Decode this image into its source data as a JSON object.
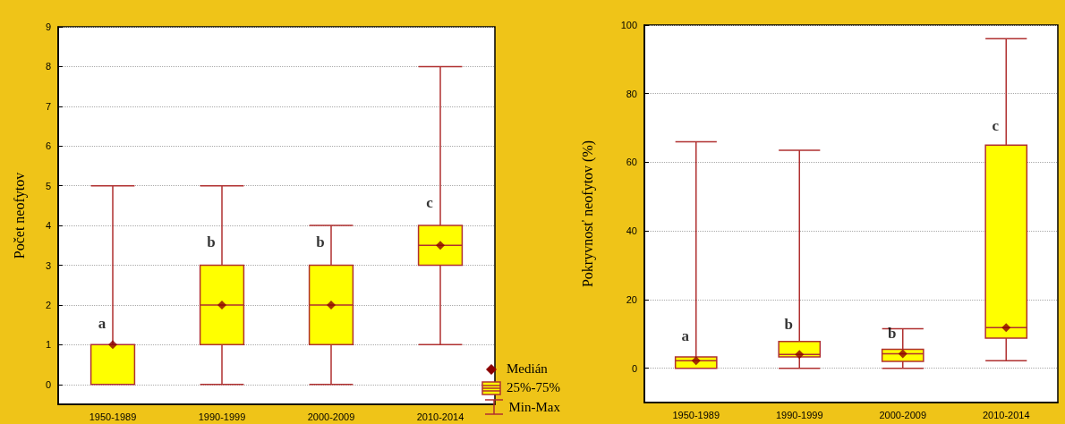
{
  "chart_data": [
    {
      "type": "box",
      "ylabel": "Počet neofytov",
      "categories": [
        "1950-1989",
        "1990-1999",
        "2000-2009",
        "2010-2014"
      ],
      "ylim": [
        -0.5,
        9
      ],
      "yticks": [
        0,
        1,
        2,
        3,
        4,
        5,
        6,
        7,
        8,
        9
      ],
      "grid": "y",
      "legend": "bottom right",
      "marker": "diamond",
      "series": [
        {
          "name": "25%-75%",
          "color": "#ffff00",
          "boxes": [
            {
              "low": 0,
              "q1": 0,
              "median": 1,
              "q3": 1,
              "high": 5
            },
            {
              "low": 0,
              "q1": 1,
              "median": 2,
              "q3": 3,
              "high": 5
            },
            {
              "low": 0,
              "q1": 1,
              "median": 2,
              "q3": 3,
              "high": 4
            },
            {
              "low": 1,
              "q1": 3,
              "median": 3.5,
              "q3": 4,
              "high": 8
            }
          ]
        },
        {
          "name": "Medián",
          "type": "scatter",
          "color": "#8b0000",
          "x": [
            "1950-1989",
            "1990-1999",
            "2000-2009",
            "2010-2014"
          ],
          "values": [
            1,
            2,
            2,
            3.5
          ]
        }
      ],
      "annotations": [
        {
          "text": "a",
          "x": "1950-1989",
          "y": 1.3
        },
        {
          "text": "b",
          "x": "1990-1999",
          "y": 3.35
        },
        {
          "text": "b",
          "x": "2000-2009",
          "y": 3.35
        },
        {
          "text": "c",
          "x": "2010-2014",
          "y": 4.35
        },
        "Min-Max"
      ]
    },
    {
      "type": "box",
      "ylabel": "Pokryvnosť neofytov (%)",
      "categories": [
        "1950-1989",
        "1990-1999",
        "2000-2009",
        "2010-2014"
      ],
      "ylim": [
        -10,
        100
      ],
      "yticks": [
        0,
        20,
        40,
        60,
        80,
        100
      ],
      "grid": "y",
      "marker": "diamond",
      "series": [
        {
          "color": "#ffff00",
          "boxes": [
            {
              "low": 0,
              "q1": 0,
              "median": 2.2,
              "q3": 3.3,
              "high": 66
            },
            {
              "low": 0,
              "q1": 3.3,
              "median": 4,
              "q3": 7.8,
              "high": 63.5
            },
            {
              "low": 0,
              "q1": 2,
              "median": 4.2,
              "q3": 5.5,
              "high": 11.5
            },
            {
              "low": 2.2,
              "q1": 8.8,
              "median": 11.8,
              "q3": 65,
              "high": 96
            }
          ]
        },
        {
          "type": "scatter",
          "color": "#8b0000",
          "x": [
            "1950-1989",
            "1990-1999",
            "2000-2009",
            "2010-2014"
          ],
          "values": [
            2.2,
            4,
            4.2,
            11.8
          ]
        }
      ],
      "annotations": [
        {
          "text": "a",
          "x": "1950-1989",
          "y": 6.7
        },
        {
          "text": "b",
          "x": "1990-1999",
          "y": 10.1
        },
        {
          "text": "b",
          "x": "2000-2009",
          "y": 7.5
        },
        {
          "text": "c",
          "x": "2010-2014",
          "y": 68
        }
      ]
    }
  ]
}
